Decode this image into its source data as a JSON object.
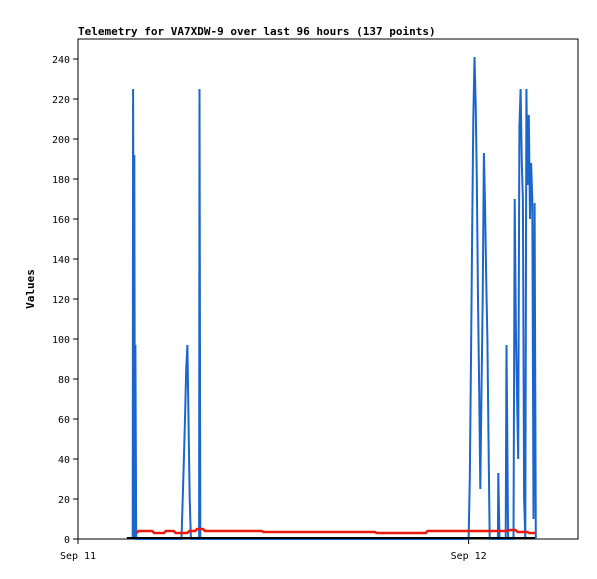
{
  "chart_data": {
    "type": "line",
    "title": "Telemetry for VA7XDW-9 over last 96 hours (137 points)",
    "xlabel": "",
    "ylabel": "Values",
    "ylim": [
      0,
      250
    ],
    "xlim": [
      0,
      1.28
    ],
    "y_ticks": [
      0,
      20,
      40,
      60,
      80,
      100,
      120,
      140,
      160,
      180,
      200,
      220,
      240
    ],
    "x_ticks": [
      {
        "value": 0,
        "label": "Sep 11"
      },
      {
        "value": 1,
        "label": "Sep 12"
      }
    ],
    "grid": false,
    "legend": "none",
    "series": [
      {
        "color": "#1a66cc",
        "x": [
          0.14,
          0.141,
          0.143,
          0.144,
          0.146,
          0.147,
          0.149,
          0.15,
          0.265,
          0.268,
          0.271,
          0.274,
          0.277,
          0.28,
          0.283,
          0.286,
          0.289,
          0.31,
          0.311,
          0.313,
          1.0,
          1.003,
          1.006,
          1.009,
          1.012,
          1.015,
          1.018,
          1.021,
          1.024,
          1.027,
          1.03,
          1.033,
          1.036,
          1.039,
          1.042,
          1.045,
          1.048,
          1.051,
          1.054,
          1.075,
          1.076,
          1.078,
          1.079,
          1.095,
          1.097,
          1.099,
          1.101,
          1.115,
          1.118,
          1.121,
          1.124,
          1.127,
          1.13,
          1.133,
          1.136,
          1.139,
          1.142,
          1.145,
          1.148,
          1.151,
          1.154,
          1.157,
          1.16,
          1.163,
          1.166,
          1.169,
          1.172
        ],
        "values": [
          0,
          225,
          0,
          192,
          0,
          97,
          0,
          0,
          0,
          20,
          40,
          60,
          85,
          97,
          60,
          20,
          0,
          0,
          225,
          0,
          0,
          30,
          90,
          150,
          210,
          241,
          217,
          180,
          120,
          74,
          25,
          74,
          120,
          193,
          168,
          130,
          100,
          50,
          0,
          0,
          33,
          10,
          0,
          0,
          97,
          50,
          0,
          0,
          170,
          105,
          70,
          40,
          206,
          225,
          188,
          170,
          20,
          0,
          225,
          177,
          212,
          160,
          188,
          170,
          10,
          168,
          0
        ]
      },
      {
        "color": "#e8190c",
        "x": [
          0.15,
          0.155,
          0.19,
          0.195,
          0.22,
          0.225,
          0.245,
          0.25,
          0.28,
          0.285,
          0.3,
          0.305,
          0.32,
          0.325,
          0.47,
          0.475,
          0.76,
          0.765,
          0.89,
          0.895,
          1.1,
          1.105,
          1.12,
          1.125,
          1.15,
          1.155,
          1.17
        ],
        "values": [
          3,
          4,
          4,
          3,
          3,
          4,
          4,
          3,
          3,
          4,
          4,
          5,
          5,
          4,
          4,
          3.5,
          3.5,
          3,
          3,
          4,
          4,
          4.5,
          4.5,
          3.5,
          3.5,
          3,
          3
        ]
      }
    ]
  }
}
